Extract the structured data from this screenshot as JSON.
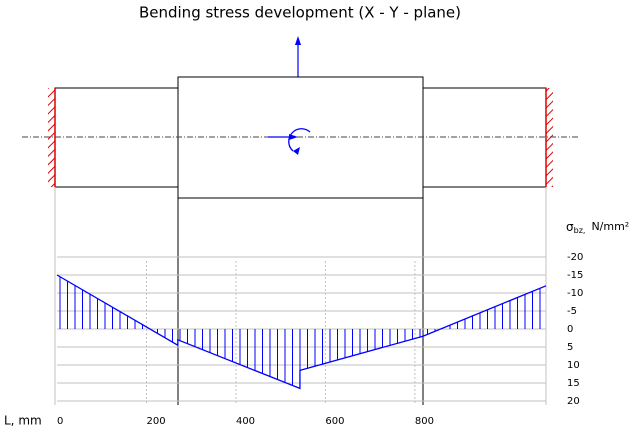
{
  "chart_data": {
    "type": "line",
    "title": "Bending stress development (X - Y - plane)",
    "xlabel": "L, mm",
    "ylabel": {
      "symbol": "σ",
      "subscript": "bz,",
      "unit": "N/mm²"
    },
    "x": [
      0,
      270,
      270,
      543,
      543,
      818,
      1093
    ],
    "series": [
      {
        "color": "#0000ff",
        "values": [
          -15,
          4.5,
          3,
          16.5,
          11.5,
          2,
          -12
        ]
      }
    ],
    "xlim": [
      0,
      1093
    ],
    "xticks": [
      0,
      200,
      400,
      600,
      800
    ],
    "ylim": [
      -20,
      20
    ],
    "yticks": [
      -20,
      -15,
      -10,
      -5,
      0,
      5,
      10,
      15,
      20
    ],
    "y_inverted": true,
    "grid": true
  }
}
